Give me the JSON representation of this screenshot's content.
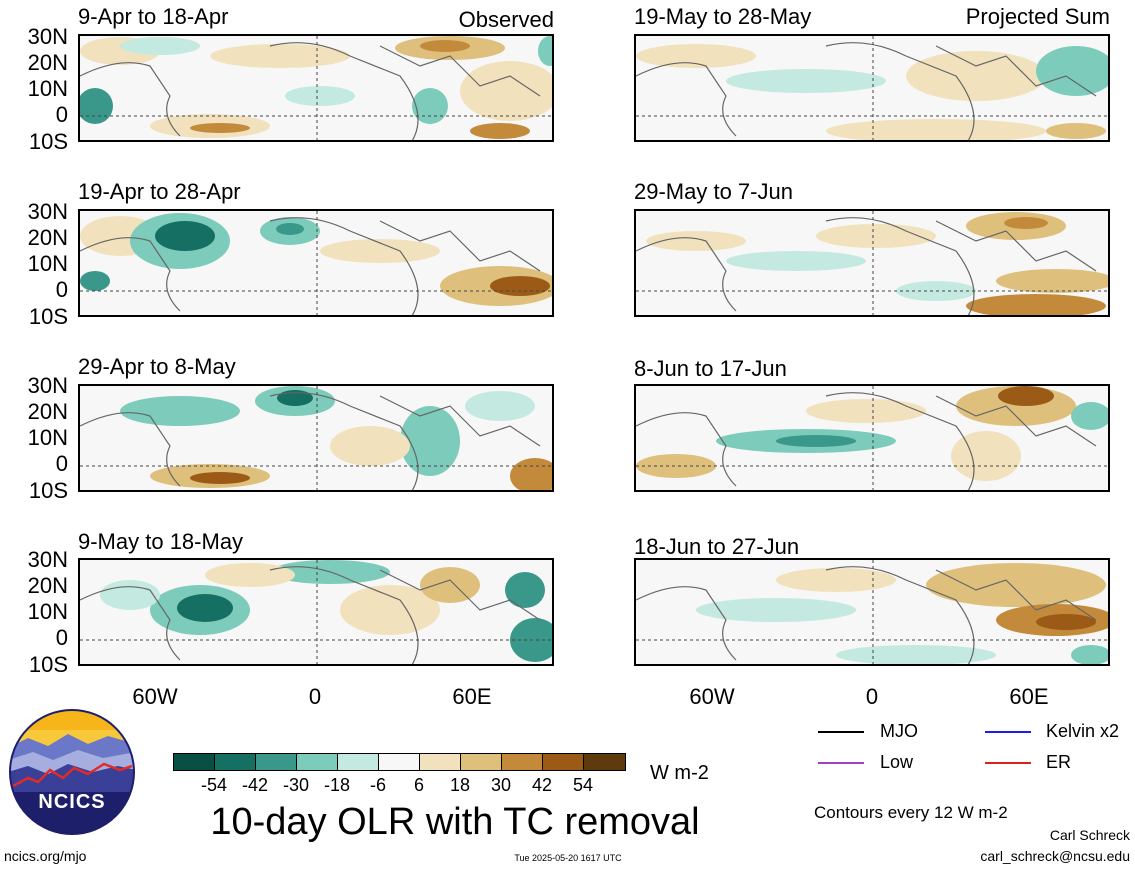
{
  "observed_label": "Observed",
  "projected_label": "Projected Sum",
  "panels_left": [
    {
      "title": "9-Apr to 18-Apr"
    },
    {
      "title": "19-Apr to 28-Apr"
    },
    {
      "title": "29-Apr to 8-May"
    },
    {
      "title": "9-May to 18-May"
    }
  ],
  "panels_right": [
    {
      "title": "19-May to 28-May"
    },
    {
      "title": "29-May to 7-Jun"
    },
    {
      "title": "8-Jun to 17-Jun"
    },
    {
      "title": "18-Jun to 27-Jun"
    }
  ],
  "lat_labels": [
    "30N",
    "20N",
    "10N",
    "0",
    "10S"
  ],
  "lon_labels": [
    "60W",
    "0",
    "60E"
  ],
  "colorbar": {
    "colors": [
      "#0a4f44",
      "#166f63",
      "#3a988a",
      "#7ccbbb",
      "#c4e9e0",
      "#f7f7f7",
      "#f1e2bd",
      "#dec07c",
      "#c48a3c",
      "#9b5b17",
      "#5f3a0c"
    ],
    "labels": [
      "-54",
      "-42",
      "-30",
      "-18",
      "-6",
      "6",
      "18",
      "30",
      "42",
      "54"
    ],
    "units": "W m-2"
  },
  "title": "10-day OLR with TC removal",
  "legend": [
    {
      "label": "MJO",
      "color": "#000000"
    },
    {
      "label": "Kelvin x2",
      "color": "#1a1aff"
    },
    {
      "label": "Low",
      "color": "#a040c8"
    },
    {
      "label": "ER",
      "color": "#e0201e"
    }
  ],
  "contours_note": "Contours every 12 W m-2",
  "author": "Carl Schreck",
  "email": "carl_schreck@ncsu.edu",
  "website": "ncics.org/mjo",
  "timestamp": "Tue 2025-05-20 1617 UTC",
  "logo_text": "NCICS"
}
